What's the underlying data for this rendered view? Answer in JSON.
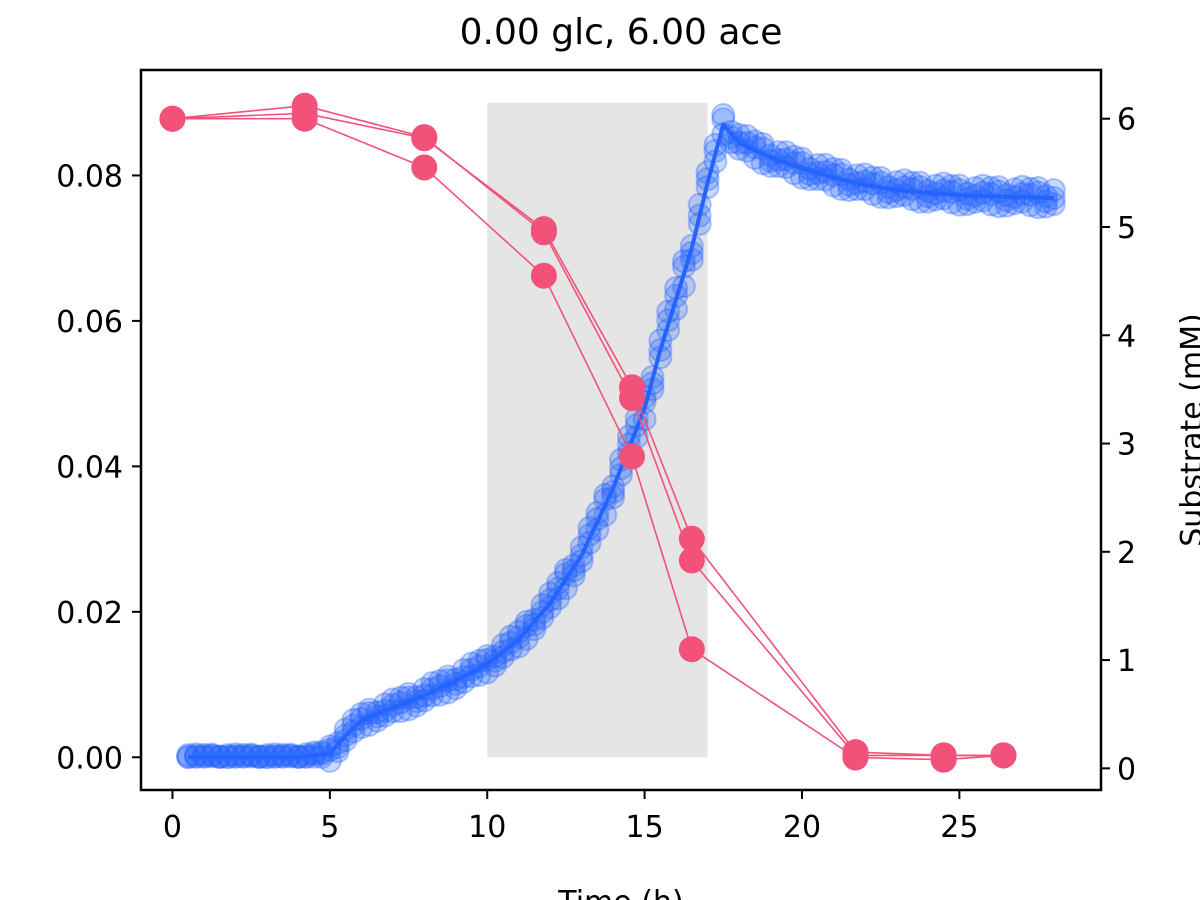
{
  "chart_data": {
    "type": "line",
    "title": "0.00 glc, 6.00 ace",
    "xlabel": "Time (h)",
    "ylabel_left": "",
    "ylabel_right": "Substrate (mM)",
    "xlim": [
      -1,
      29.5
    ],
    "ylim_left": [
      -0.0045,
      0.0945
    ],
    "ylim_right": [
      -0.2,
      6.45
    ],
    "xticks": [
      0,
      5,
      10,
      15,
      20,
      25
    ],
    "yticks_left": [
      0.0,
      0.02,
      0.04,
      0.06,
      0.08
    ],
    "yticks_left_labels": [
      "0.00",
      "0.02",
      "0.04",
      "0.06",
      "0.08"
    ],
    "yticks_right": [
      0,
      1,
      2,
      3,
      4,
      5,
      6
    ],
    "shaded_region": {
      "x": [
        10.0,
        17.0
      ],
      "y": [
        0.0,
        0.09
      ],
      "color": "#e5e5e5"
    },
    "colors": {
      "biomass": "#2563ff",
      "substrate": "#f2527a"
    },
    "biomass_fit": {
      "axis": "left",
      "x": [
        0.5,
        1,
        2,
        3,
        4,
        5,
        5.5,
        6,
        6.5,
        7,
        8,
        9,
        10,
        11,
        12,
        13,
        14,
        15,
        15.5,
        16,
        16.5,
        17,
        17.5,
        18,
        19,
        20,
        21,
        22,
        23,
        24,
        25,
        26,
        27,
        28
      ],
      "y": [
        0.0,
        0.0,
        0.0,
        0.0,
        0.0,
        0.0005,
        0.003,
        0.005,
        0.006,
        0.0068,
        0.0085,
        0.0105,
        0.0128,
        0.0162,
        0.0212,
        0.0278,
        0.037,
        0.048,
        0.056,
        0.063,
        0.07,
        0.079,
        0.087,
        0.0845,
        0.0825,
        0.081,
        0.0797,
        0.0787,
        0.078,
        0.0776,
        0.0773,
        0.0771,
        0.077,
        0.0769
      ]
    },
    "biomass_observed": {
      "axis": "left",
      "note": "three replicate series of open circles, every ~0.25 h",
      "x_start": 0.5,
      "x_end": 28.0,
      "x_step": 0.25
    },
    "series": [
      {
        "axis": "right",
        "x": [
          0,
          4.2,
          8.0,
          11.8,
          14.6,
          16.5,
          21.7,
          24.5,
          26.4
        ],
        "y": [
          6.0,
          6.05,
          5.82,
          4.98,
          3.52,
          2.12,
          0.15,
          0.12,
          0.12
        ]
      },
      {
        "axis": "right",
        "x": [
          0,
          4.2,
          8.0,
          11.8,
          14.6,
          16.5,
          21.7,
          24.5,
          26.4
        ],
        "y": [
          6.0,
          6.12,
          5.83,
          4.95,
          3.42,
          1.92,
          0.12,
          0.12,
          0.12
        ]
      },
      {
        "axis": "right",
        "x": [
          0,
          4.2,
          8.0,
          11.8,
          14.6,
          16.5,
          21.7,
          24.5,
          26.4
        ],
        "y": [
          6.0,
          6.0,
          5.55,
          4.55,
          2.88,
          1.1,
          0.1,
          0.08,
          0.12
        ]
      }
    ]
  }
}
